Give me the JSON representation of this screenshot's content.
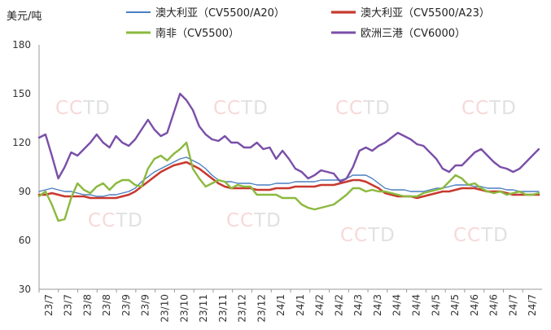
{
  "watermark": "CCTD",
  "chart_data": {
    "type": "line",
    "unit": "美元/吨",
    "ylim": [
      30,
      180
    ],
    "yticks": [
      30,
      60,
      90,
      120,
      150,
      180
    ],
    "grid": false,
    "legend_position": "top",
    "x_ticks": [
      "23/7",
      "23/7",
      "23/8",
      "23/8",
      "23/9",
      "23/9",
      "23/10",
      "23/10",
      "23/11",
      "23/11",
      "23/12",
      "23/12",
      "24/1",
      "24/1",
      "24/2",
      "24/2",
      "24/3",
      "24/3",
      "24/4",
      "24/4",
      "24/5",
      "24/5",
      "24/6",
      "24/6",
      "24/7",
      "24/7"
    ],
    "series": [
      {
        "name": "澳大利亚（CV5500/A20）",
        "color": "#4a7fc1",
        "width": 1.4,
        "values": [
          90,
          91,
          92,
          91,
          90,
          90,
          89,
          88,
          88,
          87,
          87,
          88,
          88,
          89,
          90,
          92,
          96,
          99,
          102,
          104,
          106,
          108,
          110,
          111,
          109,
          107,
          104,
          100,
          97,
          96,
          96,
          95,
          95,
          95,
          94,
          94,
          94,
          95,
          95,
          95,
          96,
          96,
          96,
          96,
          97,
          97,
          97,
          97,
          98,
          100,
          100,
          100,
          98,
          95,
          92,
          91,
          91,
          91,
          90,
          90,
          90,
          91,
          92,
          92,
          93,
          94,
          94,
          94,
          93,
          93,
          92,
          92,
          92,
          91,
          91,
          90,
          90,
          90,
          90
        ]
      },
      {
        "name": "澳大利亚（CV5500/A23）",
        "color": "#c8392e",
        "width": 2.6,
        "values": [
          88,
          88,
          89,
          88,
          87,
          87,
          87,
          87,
          86,
          86,
          86,
          86,
          86,
          87,
          88,
          90,
          93,
          96,
          99,
          102,
          104,
          106,
          107,
          108,
          106,
          104,
          101,
          98,
          95,
          93,
          92,
          92,
          92,
          92,
          91,
          91,
          91,
          92,
          92,
          92,
          93,
          93,
          93,
          93,
          94,
          94,
          94,
          95,
          96,
          97,
          97,
          96,
          94,
          92,
          89,
          88,
          87,
          87,
          87,
          86,
          87,
          88,
          89,
          90,
          90,
          91,
          92,
          92,
          92,
          91,
          90,
          90,
          90,
          89,
          88,
          88,
          88,
          88,
          88
        ]
      },
      {
        "name": "南非（CV5500）",
        "color": "#8bb93e",
        "width": 2.4,
        "values": [
          87,
          90,
          82,
          72,
          73,
          86,
          95,
          91,
          89,
          93,
          95,
          91,
          95,
          97,
          97,
          94,
          93,
          104,
          110,
          112,
          109,
          113,
          116,
          120,
          104,
          98,
          93,
          95,
          97,
          96,
          92,
          94,
          93,
          93,
          88,
          88,
          88,
          88,
          86,
          86,
          86,
          82,
          80,
          79,
          80,
          81,
          82,
          85,
          88,
          92,
          92,
          90,
          91,
          90,
          90,
          89,
          88,
          87,
          87,
          87,
          89,
          90,
          91,
          92,
          96,
          100,
          98,
          94,
          95,
          92,
          90,
          89,
          90,
          88,
          89,
          90,
          88,
          88,
          89
        ]
      },
      {
        "name": "欧洲三港（CV6000）",
        "color": "#7a4fa8",
        "width": 2.4,
        "values": [
          123,
          125,
          112,
          98,
          105,
          114,
          112,
          116,
          120,
          125,
          120,
          117,
          124,
          120,
          118,
          122,
          128,
          134,
          128,
          124,
          126,
          138,
          150,
          146,
          140,
          130,
          125,
          122,
          121,
          124,
          120,
          120,
          117,
          117,
          120,
          116,
          117,
          110,
          115,
          110,
          104,
          102,
          98,
          100,
          103,
          102,
          101,
          96,
          98,
          105,
          115,
          117,
          115,
          118,
          120,
          123,
          126,
          124,
          122,
          119,
          118,
          114,
          110,
          104,
          102,
          106,
          106,
          110,
          114,
          116,
          112,
          108,
          105,
          104,
          102,
          104,
          108,
          112,
          116
        ]
      }
    ]
  }
}
